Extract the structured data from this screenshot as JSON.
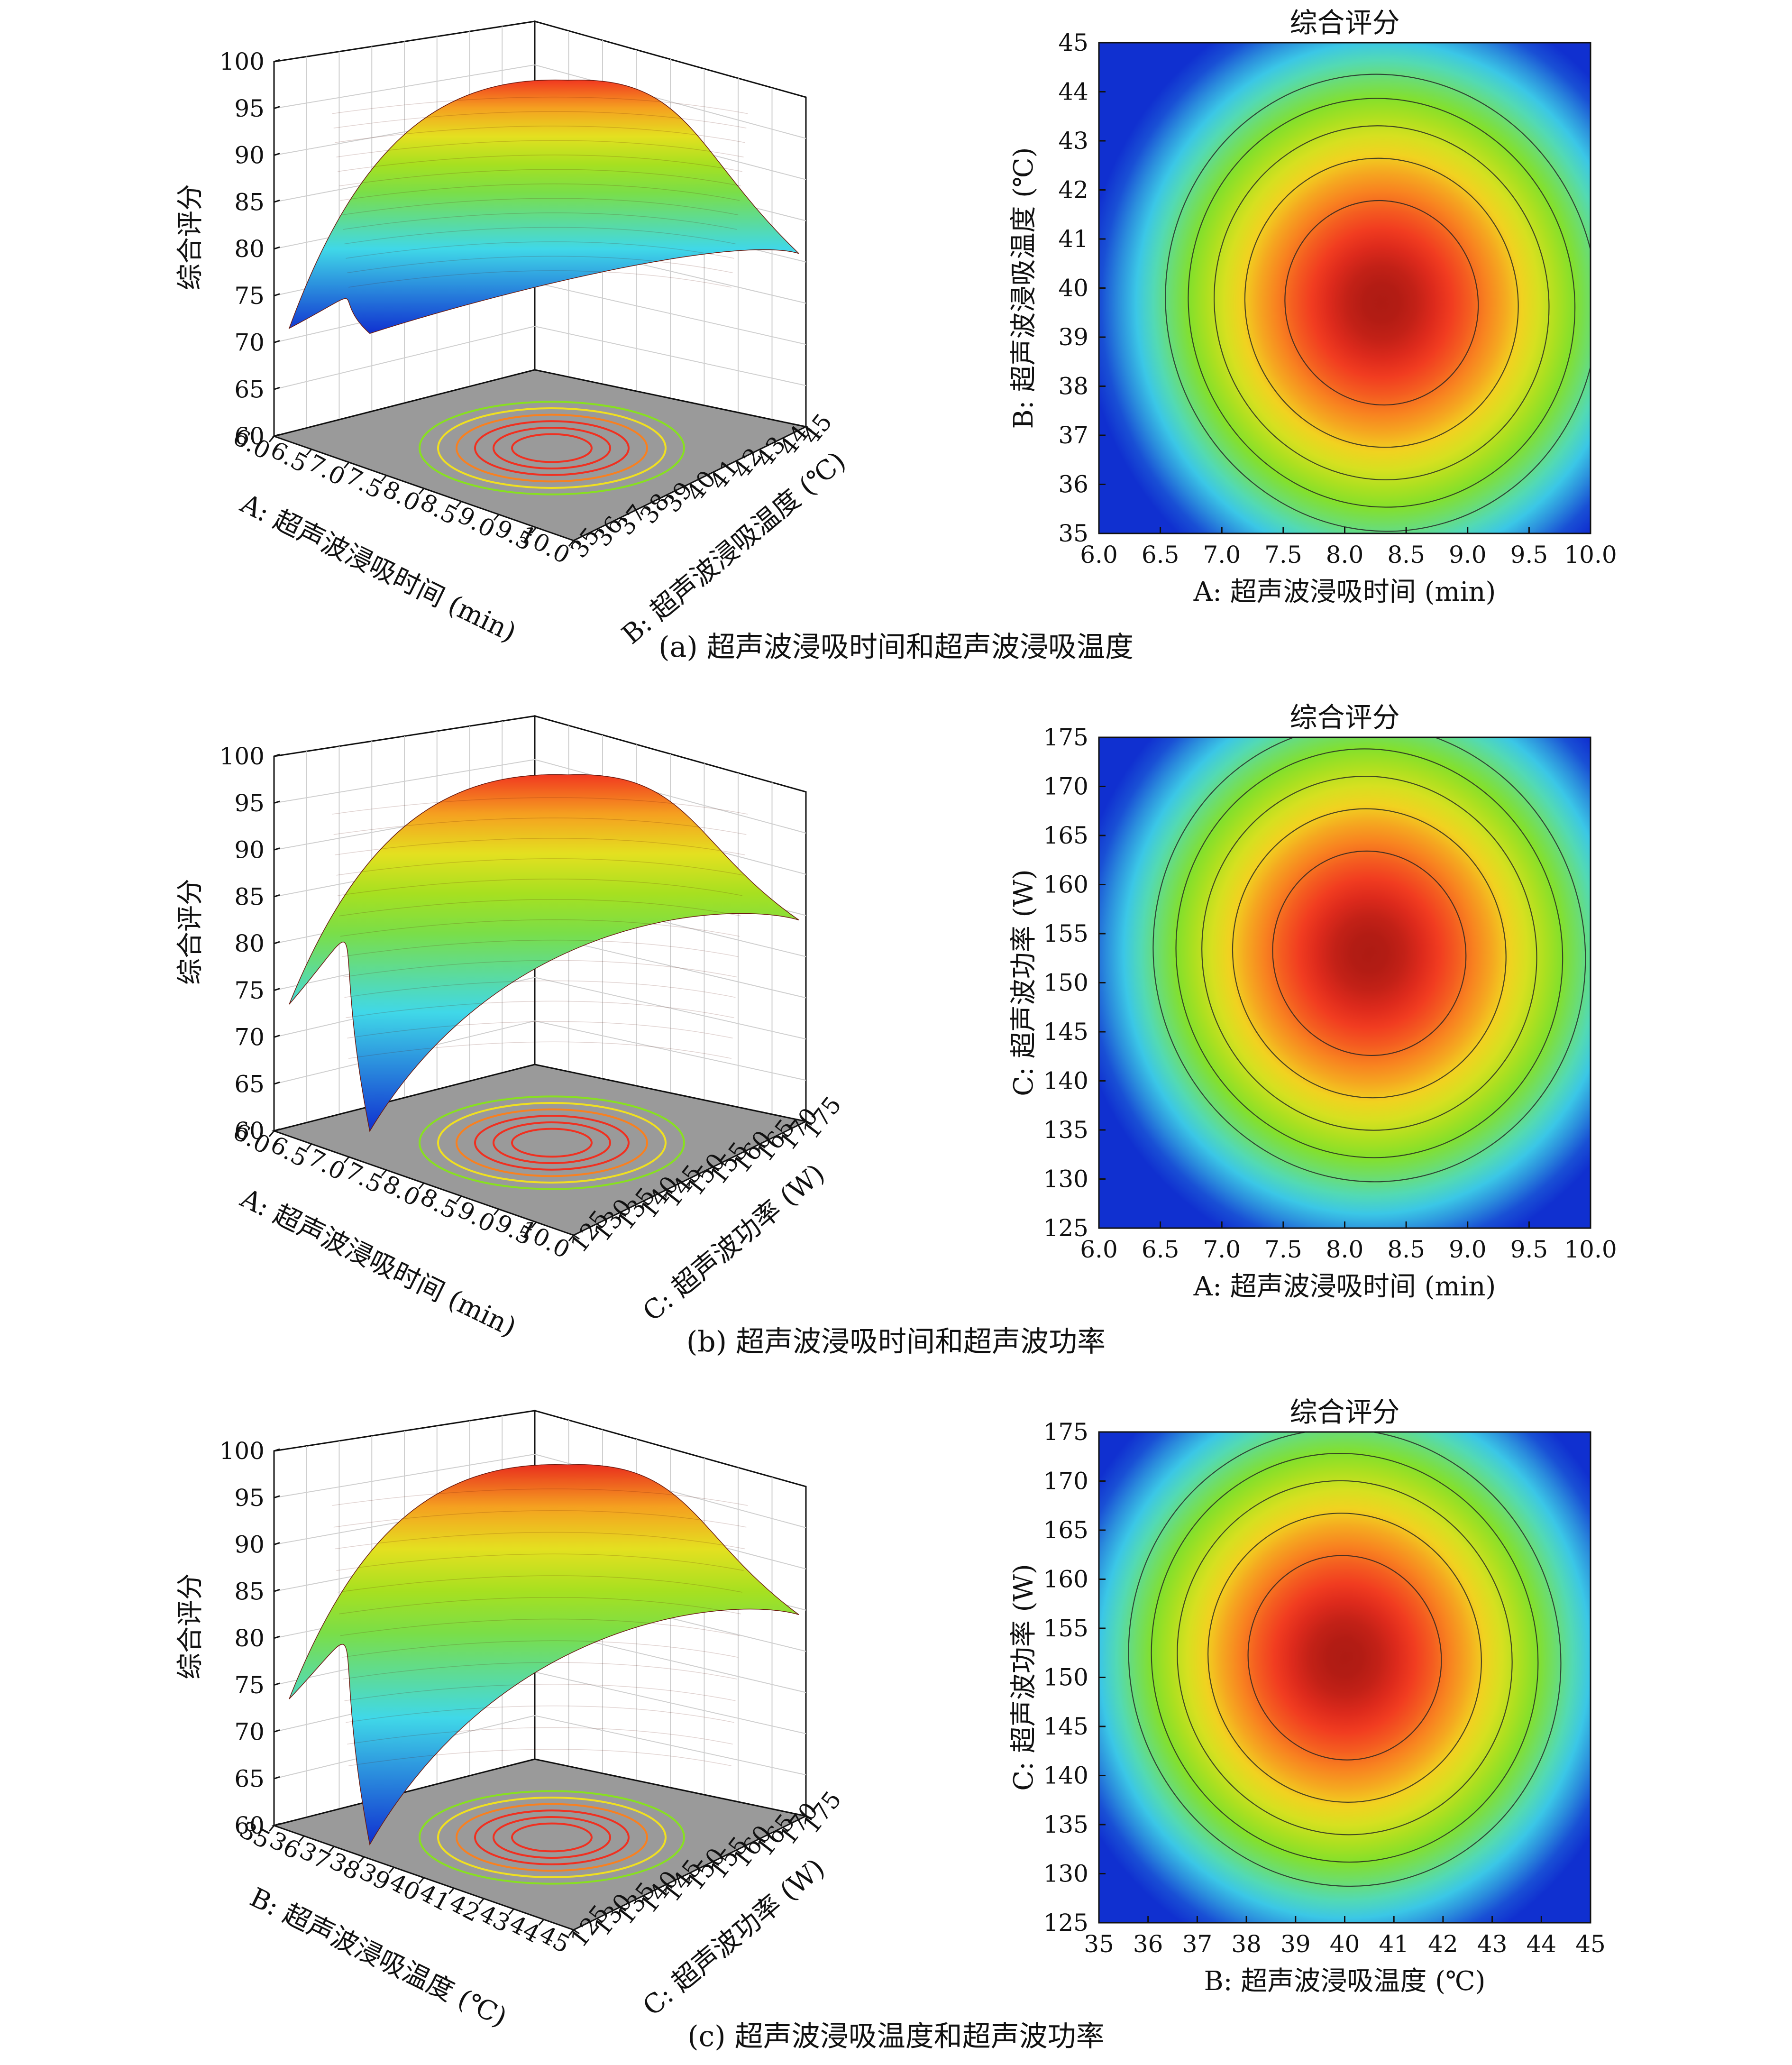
{
  "chart_data": [
    {
      "panel": "a",
      "caption": "(a) 超声波浸吸时间和超声波浸吸温度",
      "surface": {
        "type": "surface3d",
        "zlabel": "综合评分",
        "zticks": [
          "100",
          "95",
          "90",
          "85",
          "80",
          "75",
          "70",
          "65",
          "60"
        ],
        "zlim": [
          60,
          100
        ],
        "xlabel": "A: 超声波浸吸时间 (min)",
        "xticks": [
          "6.0",
          "6.5",
          "7.0",
          "7.5",
          "8.0",
          "8.5",
          "9.0",
          "9.5",
          "10.0"
        ],
        "ylabel": "B: 超声波浸吸温度 (℃)",
        "yticks": [
          "35",
          "36",
          "37",
          "38",
          "39",
          "40",
          "41",
          "42",
          "43",
          "44",
          "45"
        ],
        "peak": 96.5,
        "corner_values": [
          70,
          78,
          73,
          72
        ]
      },
      "contour": {
        "type": "contour",
        "title": "综合评分",
        "xlabel": "A: 超声波浸吸时间 (min)",
        "xticks": [
          "6.0",
          "6.5",
          "7.0",
          "7.5",
          "8.0",
          "8.5",
          "9.0",
          "9.5",
          "10.0"
        ],
        "xlim": [
          6,
          10
        ],
        "ylabel": "B: 超声波浸吸温度 (℃)",
        "yticks": [
          "35",
          "36",
          "37",
          "38",
          "39",
          "40",
          "41",
          "42",
          "43",
          "44",
          "45"
        ],
        "ylim": [
          35,
          45
        ],
        "optimum": {
          "x": 8.3,
          "y": 39.7
        },
        "contour_levels": [
          92,
          88,
          84,
          80,
          76
        ],
        "range": [
          60,
          96
        ]
      }
    },
    {
      "panel": "b",
      "caption": "(b) 超声波浸吸时间和超声波功率",
      "surface": {
        "type": "surface3d",
        "zlabel": "综合评分",
        "zticks": [
          "100",
          "95",
          "90",
          "85",
          "80",
          "75",
          "70",
          "65",
          "60"
        ],
        "zlim": [
          60,
          100
        ],
        "xlabel": "A: 超声波浸吸时间 (min)",
        "xticks": [
          "6.0",
          "6.5",
          "7.0",
          "7.5",
          "8.0",
          "8.5",
          "9.0",
          "9.5",
          "10.0"
        ],
        "ylabel": "C: 超声波功率 (W)",
        "yticks": [
          "125",
          "130",
          "135",
          "140",
          "145",
          "150",
          "155",
          "160",
          "165",
          "170",
          "175"
        ],
        "peak": 96.5,
        "corner_values": [
          72,
          81,
          62,
          80
        ]
      },
      "contour": {
        "type": "contour",
        "title": "综合评分",
        "xlabel": "A: 超声波浸吸时间 (min)",
        "xticks": [
          "6.0",
          "6.5",
          "7.0",
          "7.5",
          "8.0",
          "8.5",
          "9.0",
          "9.5",
          "10.0"
        ],
        "xlim": [
          6,
          10
        ],
        "ylabel": "C: 超声波功率 (W)",
        "yticks": [
          "125",
          "130",
          "135",
          "140",
          "145",
          "150",
          "155",
          "160",
          "165",
          "170",
          "175"
        ],
        "ylim": [
          125,
          175
        ],
        "optimum": {
          "x": 8.2,
          "y": 153
        },
        "contour_levels": [
          92,
          88,
          84,
          80,
          76
        ],
        "range": [
          60,
          96
        ]
      }
    },
    {
      "panel": "c",
      "caption": "(c) 超声波浸吸温度和超声波功率",
      "surface": {
        "type": "surface3d",
        "zlabel": "综合评分",
        "zticks": [
          "100",
          "95",
          "90",
          "85",
          "80",
          "75",
          "70",
          "65",
          "60"
        ],
        "zlim": [
          60,
          100
        ],
        "xlabel": "B: 超声波浸吸温度 (℃)",
        "xticks": [
          "35",
          "36",
          "37",
          "38",
          "39",
          "40",
          "41",
          "42",
          "43",
          "44",
          "45"
        ],
        "ylabel": "C: 超声波功率 (W)",
        "yticks": [
          "125",
          "130",
          "135",
          "140",
          "145",
          "150",
          "155",
          "160",
          "165",
          "170",
          "175"
        ],
        "peak": 97,
        "corner_values": [
          72,
          81,
          60,
          79
        ]
      },
      "contour": {
        "type": "contour",
        "title": "综合评分",
        "xlabel": "B: 超声波浸吸温度 (℃)",
        "xticks": [
          "35",
          "36",
          "37",
          "38",
          "39",
          "40",
          "41",
          "42",
          "43",
          "44",
          "45"
        ],
        "xlim": [
          35,
          45
        ],
        "ylabel": "C: 超声波功率 (W)",
        "yticks": [
          "125",
          "130",
          "135",
          "140",
          "145",
          "150",
          "155",
          "160",
          "165",
          "170",
          "175"
        ],
        "ylim": [
          125,
          175
        ],
        "optimum": {
          "x": 40.0,
          "y": 152
        },
        "contour_levels": [
          92,
          88,
          84,
          80,
          76
        ],
        "range": [
          60,
          96
        ]
      }
    }
  ],
  "colors": {
    "low": "#1030d0",
    "cyan": "#40d8e8",
    "green": "#88e020",
    "yellow": "#f0e020",
    "orange": "#f88020",
    "red": "#f03020",
    "dark": "#7a0a08",
    "base": "#9a9a9a"
  }
}
